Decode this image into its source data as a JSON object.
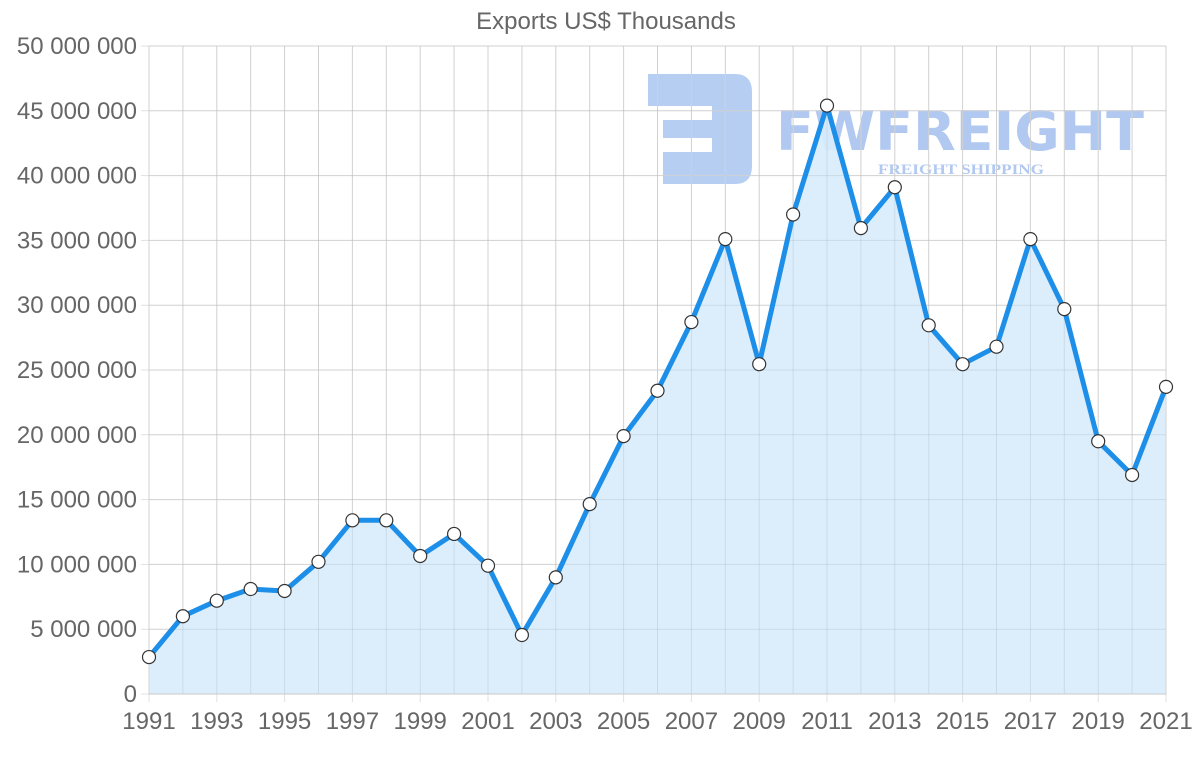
{
  "chart_data": {
    "type": "line",
    "title": "Exports US$ Thousands",
    "xlabel": "",
    "ylabel": "",
    "x": [
      1991,
      1992,
      1993,
      1994,
      1995,
      1996,
      1997,
      1998,
      1999,
      2000,
      2001,
      2002,
      2003,
      2004,
      2005,
      2006,
      2007,
      2008,
      2009,
      2010,
      2011,
      2012,
      2013,
      2014,
      2015,
      2016,
      2017,
      2018,
      2019,
      2020,
      2021
    ],
    "series": [
      {
        "name": "Exports US$ Thousands",
        "values": [
          2850000,
          6000000,
          7200000,
          8100000,
          7950000,
          10200000,
          13400000,
          13400000,
          10650000,
          12350000,
          9900000,
          4550000,
          9000000,
          14650000,
          19900000,
          23400000,
          28700000,
          35100000,
          25450000,
          37000000,
          45400000,
          35950000,
          39100000,
          28450000,
          25450000,
          26800000,
          35100000,
          29700000,
          19500000,
          16900000,
          23700000
        ]
      }
    ],
    "ylim": [
      0,
      50000000
    ],
    "y_ticks": [
      "0",
      "5 000 000",
      "10 000 000",
      "15 000 000",
      "20 000 000",
      "25 000 000",
      "30 000 000",
      "35 000 000",
      "40 000 000",
      "45 000 000",
      "50 000 000"
    ],
    "x_ticks": [
      "1991",
      "1993",
      "1995",
      "1997",
      "1999",
      "2001",
      "2003",
      "2005",
      "2007",
      "2009",
      "2011",
      "2013",
      "2015",
      "2017",
      "2019",
      "2021"
    ],
    "grid": true,
    "legend": "none",
    "fill": true,
    "colors": {
      "line": "#1e8fe8",
      "fill": "#d8ecfc",
      "point_fill": "#ffffff",
      "point_stroke": "#333333"
    }
  },
  "watermark": {
    "brand": "FWFREIGHT",
    "tagline": "FREIGHT SHIPPING"
  }
}
